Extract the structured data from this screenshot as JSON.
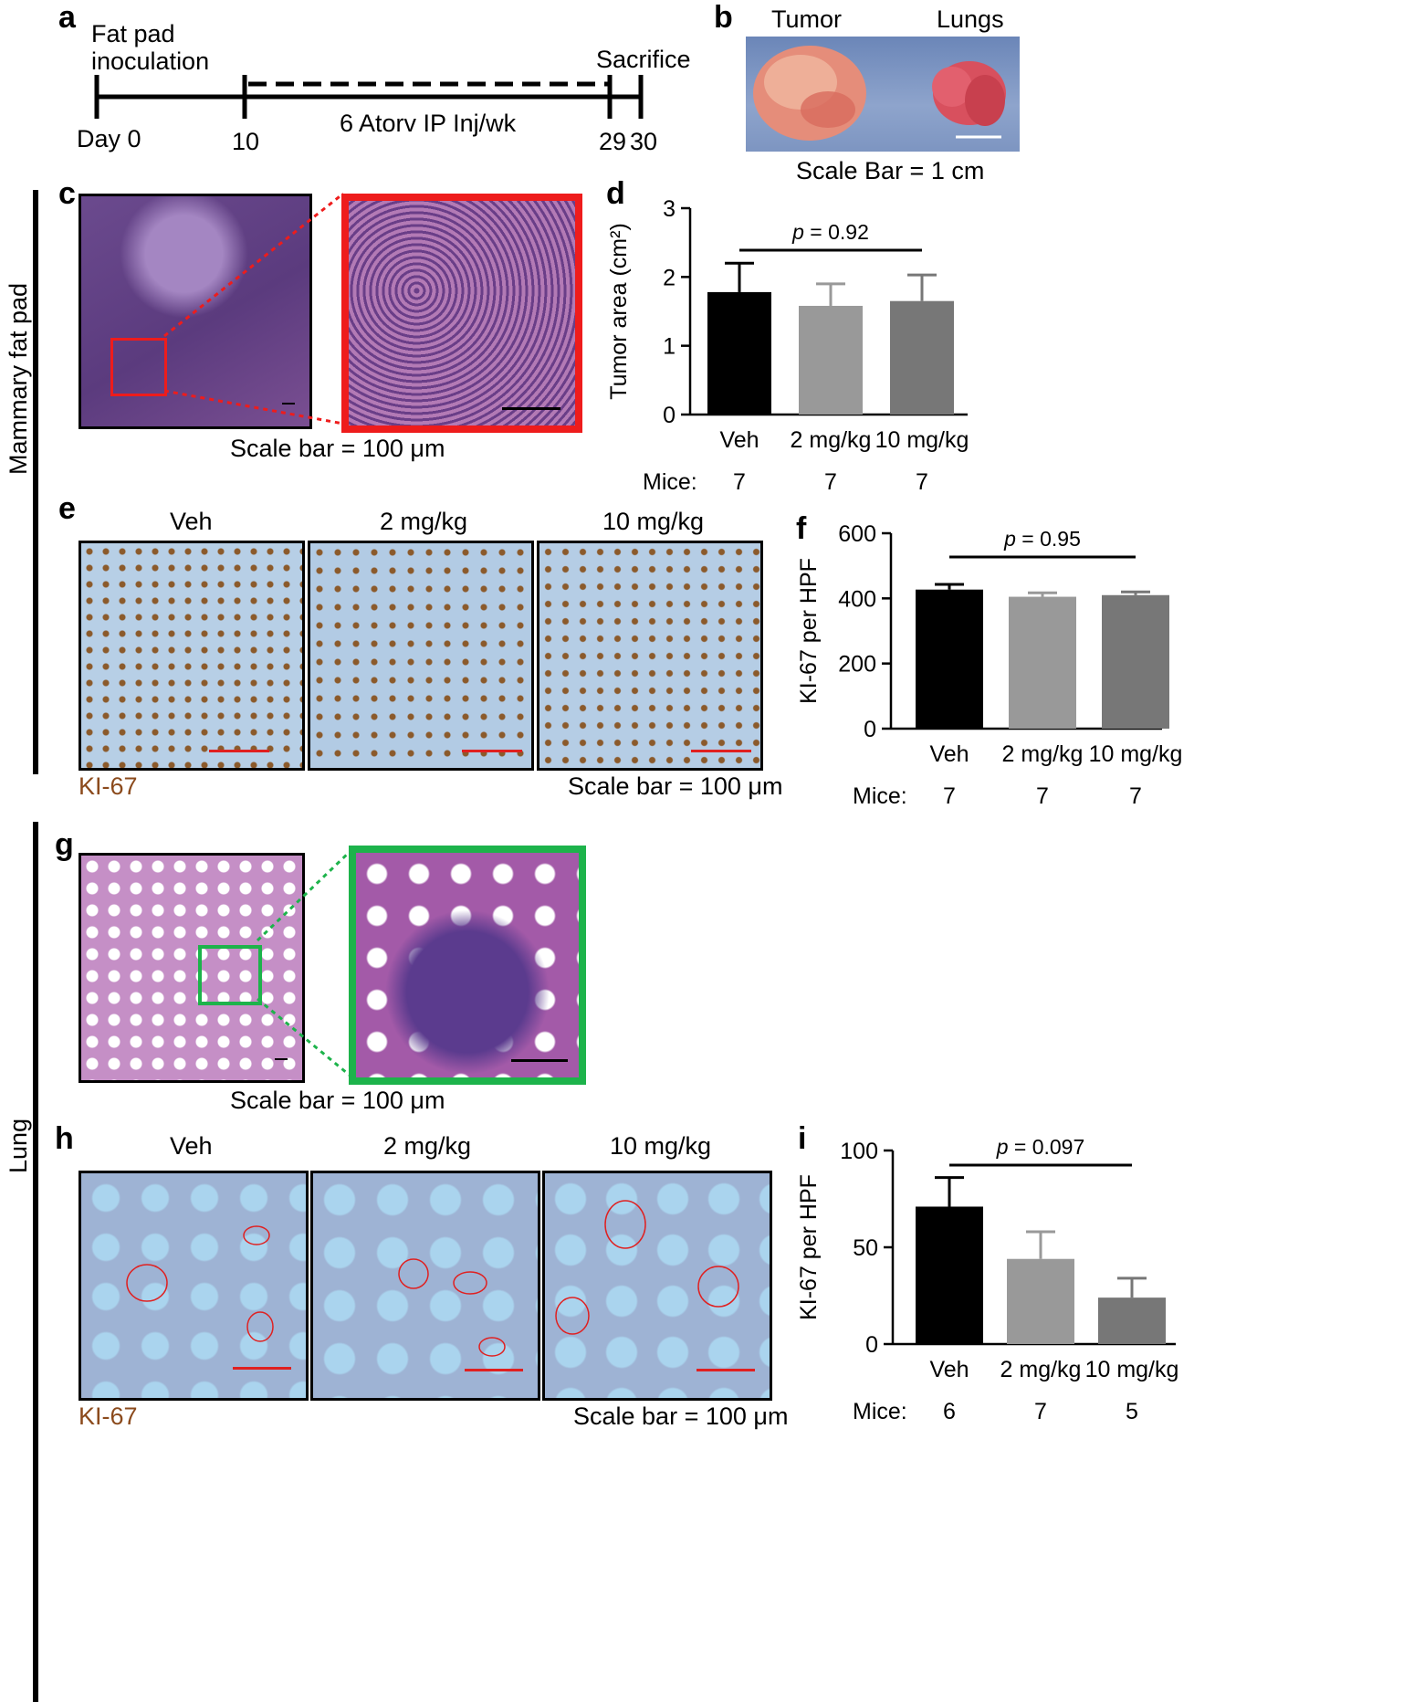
{
  "panels": {
    "a": "a",
    "b": "b",
    "c": "c",
    "d": "d",
    "e": "e",
    "f": "f",
    "g": "g",
    "h": "h",
    "i": "i"
  },
  "sidebars": {
    "top": "Mammary fat pad",
    "bottom": "Lung"
  },
  "timeline": {
    "start_label": "Fat pad\ninoculation",
    "end_label": "Sacrifice",
    "ticks": [
      "Day 0",
      "10",
      "29",
      "30"
    ],
    "treatment": "6 Atorv IP Inj/wk"
  },
  "photo_b": {
    "left_label": "Tumor",
    "right_label": "Lungs",
    "scale": "Scale Bar = 1 cm"
  },
  "scale_100": "Scale bar = 100 μm",
  "stain": "KI-67",
  "groups": [
    "Veh",
    "2 mg/kg",
    "10 mg/kg"
  ],
  "mice_label": "Mice:",
  "colors": {
    "veh": "#000000",
    "low": "#999999",
    "high": "#777777",
    "zoom_c": "#ee1c1c",
    "zoom_g": "#1db34b",
    "ki67_text": "#8b4a1c"
  },
  "chart_data": [
    {
      "panel": "d",
      "type": "bar",
      "categories": [
        "Veh",
        "2 mg/kg",
        "10 mg/kg"
      ],
      "values": [
        1.78,
        1.58,
        1.65
      ],
      "errors": [
        0.42,
        0.32,
        0.38
      ],
      "ylabel": "Tumor area (cm²)",
      "ylim": [
        0,
        3
      ],
      "yticks": [
        0,
        1,
        2,
        3
      ],
      "p_value": "p = 0.92",
      "mice": [
        7,
        7,
        7
      ]
    },
    {
      "panel": "f",
      "type": "bar",
      "categories": [
        "Veh",
        "2 mg/kg",
        "10 mg/kg"
      ],
      "values": [
        427,
        405,
        410
      ],
      "errors": [
        16,
        12,
        10
      ],
      "ylabel": "KI-67 per HPF",
      "ylim": [
        0,
        600
      ],
      "yticks": [
        0,
        200,
        400,
        600
      ],
      "p_value": "p = 0.95",
      "mice": [
        7,
        7,
        7
      ]
    },
    {
      "panel": "i",
      "type": "bar",
      "categories": [
        "Veh",
        "2 mg/kg",
        "10 mg/kg"
      ],
      "values": [
        71,
        44,
        24
      ],
      "errors": [
        15,
        14,
        10
      ],
      "ylabel": "KI-67 per HPF",
      "ylim": [
        0,
        100
      ],
      "yticks": [
        0,
        50,
        100
      ],
      "p_value": "p = 0.097",
      "mice": [
        6,
        7,
        5
      ]
    }
  ]
}
